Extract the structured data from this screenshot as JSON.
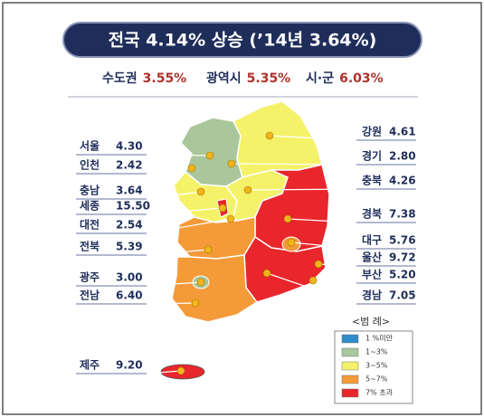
{
  "header": {
    "title": "전국 4.14% 상승 (’14년 3.64%)"
  },
  "summary": [
    {
      "label": "수도권",
      "value": "3.55%"
    },
    {
      "label": "광역시",
      "value": "5.35%"
    },
    {
      "label": "시·군",
      "value": "6.03%"
    }
  ],
  "regions": [
    {
      "name": "서울",
      "value": "4.30"
    },
    {
      "name": "인천",
      "value": "2.42"
    },
    {
      "name": "충남",
      "value": "3.64"
    },
    {
      "name": "세종",
      "value": "15.50"
    },
    {
      "name": "대전",
      "value": "2.54"
    },
    {
      "name": "전북",
      "value": "5.39"
    },
    {
      "name": "광주",
      "value": "3.00"
    },
    {
      "name": "전남",
      "value": "6.40"
    },
    {
      "name": "제주",
      "value": "9.20"
    },
    {
      "name": "강원",
      "value": "4.61"
    },
    {
      "name": "경기",
      "value": "2.80"
    },
    {
      "name": "충북",
      "value": "4.26"
    },
    {
      "name": "경북",
      "value": "7.38"
    },
    {
      "name": "대구",
      "value": "5.76"
    },
    {
      "name": "울산",
      "value": "9.72"
    },
    {
      "name": "부산",
      "value": "5.20"
    },
    {
      "name": "경남",
      "value": "7.05"
    }
  ],
  "legend": {
    "title": "<범 례>",
    "items": [
      "1 %미만",
      "1~3%",
      "3~5%",
      "5~7%",
      "7% 초과"
    ]
  }
}
